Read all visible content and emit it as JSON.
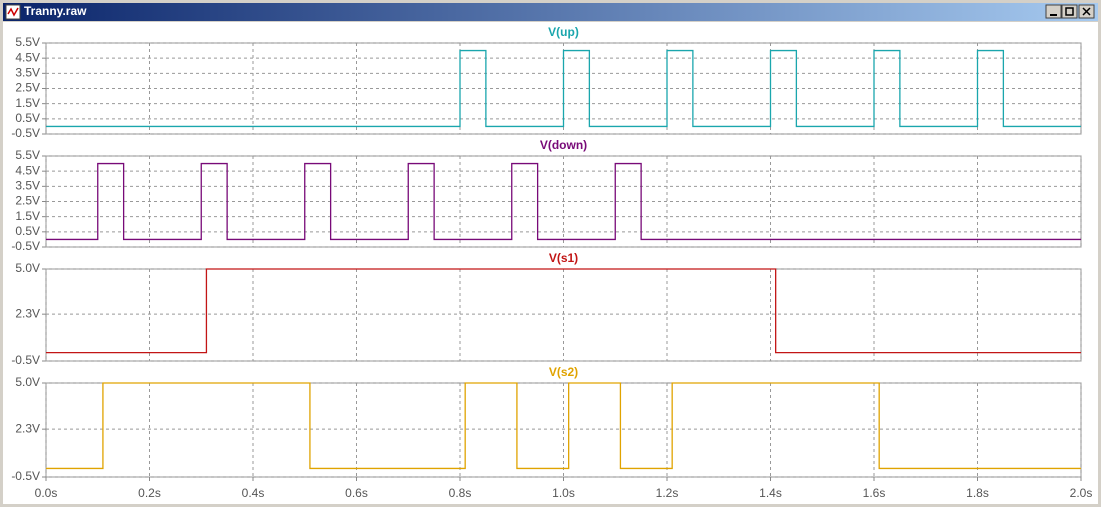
{
  "window": {
    "title": "Tranny.raw"
  },
  "chart_data": [
    {
      "type": "line",
      "xlim": [
        0,
        2
      ],
      "xticks": [
        0,
        0.2,
        0.4,
        0.6,
        0.8,
        1.0,
        1.2,
        1.4,
        1.6,
        1.8,
        2.0
      ],
      "ylim": [
        -0.5,
        5.5
      ],
      "yticks": [
        {
          "value": -0.5,
          "label": "-0.5V"
        },
        {
          "value": 0.5,
          "label": "0.5V"
        },
        {
          "value": 1.5,
          "label": "1.5V"
        },
        {
          "value": 2.5,
          "label": "2.5V"
        },
        {
          "value": 3.5,
          "label": "3.5V"
        },
        {
          "value": 4.5,
          "label": "4.5V"
        },
        {
          "value": 5.5,
          "label": "5.5V"
        }
      ],
      "grid": true,
      "x": [
        0,
        0.8,
        0.8,
        0.85,
        0.85,
        1.0,
        1.0,
        1.05,
        1.05,
        1.2,
        1.2,
        1.25,
        1.25,
        1.4,
        1.4,
        1.45,
        1.45,
        1.6,
        1.6,
        1.65,
        1.65,
        1.8,
        1.8,
        1.85,
        1.85,
        2.0
      ],
      "series": [
        {
          "name": "V(up)",
          "color": "#1aa6ad",
          "values": [
            0,
            0,
            5,
            5,
            0,
            0,
            5,
            5,
            0,
            0,
            5,
            5,
            0,
            0,
            5,
            5,
            0,
            0,
            5,
            5,
            0,
            0,
            5,
            5,
            0,
            0
          ]
        }
      ]
    },
    {
      "type": "line",
      "xlim": [
        0,
        2
      ],
      "xticks": [
        0,
        0.2,
        0.4,
        0.6,
        0.8,
        1.0,
        1.2,
        1.4,
        1.6,
        1.8,
        2.0
      ],
      "ylim": [
        -0.5,
        5.5
      ],
      "yticks": [
        {
          "value": -0.5,
          "label": "-0.5V"
        },
        {
          "value": 0.5,
          "label": "0.5V"
        },
        {
          "value": 1.5,
          "label": "1.5V"
        },
        {
          "value": 2.5,
          "label": "2.5V"
        },
        {
          "value": 3.5,
          "label": "3.5V"
        },
        {
          "value": 4.5,
          "label": "4.5V"
        },
        {
          "value": 5.5,
          "label": "5.5V"
        }
      ],
      "grid": true,
      "x": [
        0,
        0.1,
        0.1,
        0.15,
        0.15,
        0.3,
        0.3,
        0.35,
        0.35,
        0.5,
        0.5,
        0.55,
        0.55,
        0.7,
        0.7,
        0.75,
        0.75,
        0.9,
        0.9,
        0.95,
        0.95,
        1.1,
        1.1,
        1.15,
        1.15,
        2.0
      ],
      "series": [
        {
          "name": "V(down)",
          "color": "#780a78",
          "values": [
            0,
            0,
            5,
            5,
            0,
            0,
            5,
            5,
            0,
            0,
            5,
            5,
            0,
            0,
            5,
            5,
            0,
            0,
            5,
            5,
            0,
            0,
            5,
            5,
            0,
            0
          ]
        }
      ]
    },
    {
      "type": "line",
      "xlim": [
        0,
        2
      ],
      "xticks": [
        0,
        0.2,
        0.4,
        0.6,
        0.8,
        1.0,
        1.2,
        1.4,
        1.6,
        1.8,
        2.0
      ],
      "ylim": [
        -0.5,
        5.0
      ],
      "yticks": [
        {
          "value": -0.5,
          "label": "-0.5V"
        },
        {
          "value": 2.3,
          "label": "2.3V"
        },
        {
          "value": 5.0,
          "label": "5.0V"
        }
      ],
      "grid": true,
      "x": [
        0,
        0.31,
        0.31,
        1.41,
        1.41,
        2.0
      ],
      "series": [
        {
          "name": "V(s1)",
          "color": "#c21515",
          "values": [
            0,
            0,
            5,
            5,
            0,
            0
          ]
        }
      ]
    },
    {
      "type": "line",
      "xlim": [
        0,
        2
      ],
      "xticks": [
        {
          "value": 0,
          "label": "0.0s"
        },
        {
          "value": 0.2,
          "label": "0.2s"
        },
        {
          "value": 0.4,
          "label": "0.4s"
        },
        {
          "value": 0.6,
          "label": "0.6s"
        },
        {
          "value": 0.8,
          "label": "0.8s"
        },
        {
          "value": 1.0,
          "label": "1.0s"
        },
        {
          "value": 1.2,
          "label": "1.2s"
        },
        {
          "value": 1.4,
          "label": "1.4s"
        },
        {
          "value": 1.6,
          "label": "1.6s"
        },
        {
          "value": 1.8,
          "label": "1.8s"
        },
        {
          "value": 2.0,
          "label": "2.0s"
        }
      ],
      "ylim": [
        -0.5,
        5.0
      ],
      "yticks": [
        {
          "value": -0.5,
          "label": "-0.5V"
        },
        {
          "value": 2.3,
          "label": "2.3V"
        },
        {
          "value": 5.0,
          "label": "5.0V"
        }
      ],
      "grid": true,
      "x": [
        0,
        0.11,
        0.11,
        0.51,
        0.51,
        0.81,
        0.81,
        0.91,
        0.91,
        1.01,
        1.01,
        1.11,
        1.11,
        1.21,
        1.21,
        1.61,
        1.61,
        2.0
      ],
      "series": [
        {
          "name": "V(s2)",
          "color": "#e0a300",
          "values": [
            0,
            0,
            5,
            5,
            0,
            0,
            5,
            5,
            0,
            0,
            5,
            5,
            0,
            0,
            5,
            5,
            0,
            0
          ]
        }
      ]
    }
  ]
}
